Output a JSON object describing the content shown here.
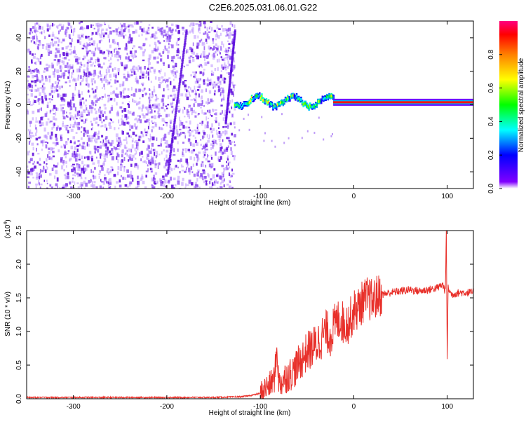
{
  "title": "C2E6.2025.031.06.01.G22",
  "colors": {
    "line": "#e8302a",
    "axis": "#000000"
  },
  "chart_data": [
    {
      "type": "heatmap",
      "xlabel": "Height of straight line (km)",
      "ylabel": "Frequency (Hz)",
      "xlim": [
        -350,
        128
      ],
      "ylim": [
        -50,
        50
      ],
      "x_ticks": [
        -300,
        -200,
        -100,
        0,
        100
      ],
      "x_tick_labels": [
        "-300",
        "-200",
        "-100",
        "0",
        "100"
      ],
      "y_ticks": [
        -40,
        -20,
        0,
        20,
        40
      ],
      "y_tick_labels": [
        "-40",
        "-20",
        "0",
        "20",
        "40"
      ],
      "colorbar": {
        "label": "Normalized spectral amplitude",
        "range": [
          0,
          1
        ],
        "ticks": [
          0.0,
          0.2,
          0.4,
          0.6,
          0.8
        ],
        "tick_labels": [
          "0.0",
          "0.2",
          "0.4",
          "0.6",
          "0.8"
        ],
        "colormap": [
          "#ffffff",
          "#8000ff",
          "#0000ff",
          "#00ffff",
          "#00ff00",
          "#ffff00",
          "#ff8000",
          "#ff0000",
          "#ff0080"
        ]
      },
      "regions": [
        {
          "name": "noise",
          "x_range": [
            -350,
            -128
          ],
          "y_range": [
            -50,
            50
          ],
          "amplitude": 0.1
        },
        {
          "name": "ridge-wavy",
          "x_range": [
            -128,
            -22
          ],
          "y_center": 2,
          "amplitude": 0.45
        },
        {
          "name": "ridge-steady",
          "x_range": [
            -22,
            128
          ],
          "y_center": 1.5,
          "amplitude": 0.9
        }
      ],
      "streaks": [
        {
          "x": [
            -200,
            -180
          ],
          "y": [
            -40,
            45
          ]
        },
        {
          "x": [
            -138,
            -128
          ],
          "y": [
            -10,
            45
          ]
        }
      ]
    },
    {
      "type": "line",
      "xlabel": "Height of straight line (km)",
      "ylabel": "SNR (10 * v/v)",
      "multiplier_label": "(x10",
      "multiplier_exponent": "4",
      "multiplier_close": ")",
      "xlim": [
        -350,
        128
      ],
      "ylim": [
        0,
        2.5
      ],
      "x_ticks": [
        -300,
        -200,
        -100,
        0,
        100
      ],
      "x_tick_labels": [
        "-300",
        "-200",
        "-100",
        "0",
        "100"
      ],
      "y_ticks": [
        0.0,
        0.5,
        1.0,
        1.5,
        2.0,
        2.5
      ],
      "y_tick_labels": [
        "0.0",
        "0.5",
        "1.0",
        "1.5",
        "2.0",
        "2.5"
      ],
      "series": [
        {
          "x": [
            -350,
            -300,
            -250,
            -200,
            -150,
            -120,
            -110,
            -100,
            -95,
            -90,
            -85,
            -82,
            -80,
            -75,
            -70,
            -65,
            -60,
            -55,
            -50,
            -45,
            -40,
            -35,
            -30,
            -25,
            -20,
            -15,
            -10,
            -5,
            0,
            5,
            10,
            15,
            20,
            25,
            30,
            40,
            50,
            60,
            70,
            80,
            90,
            95,
            98,
            99,
            100,
            101,
            102,
            105,
            110,
            115,
            120,
            128
          ],
          "values": [
            0.02,
            0.02,
            0.02,
            0.02,
            0.02,
            0.03,
            0.05,
            0.08,
            0.15,
            0.2,
            0.3,
            0.75,
            0.2,
            0.3,
            0.35,
            0.4,
            0.5,
            0.6,
            0.7,
            0.75,
            0.8,
            0.9,
            1.0,
            0.95,
            1.1,
            1.2,
            1.1,
            1.15,
            1.3,
            1.35,
            1.45,
            1.5,
            1.45,
            1.52,
            1.55,
            1.58,
            1.6,
            1.62,
            1.6,
            1.62,
            1.65,
            1.7,
            1.6,
            2.5,
            0.6,
            1.7,
            1.6,
            1.55,
            1.57,
            1.58,
            1.58,
            1.58
          ]
        }
      ]
    }
  ]
}
